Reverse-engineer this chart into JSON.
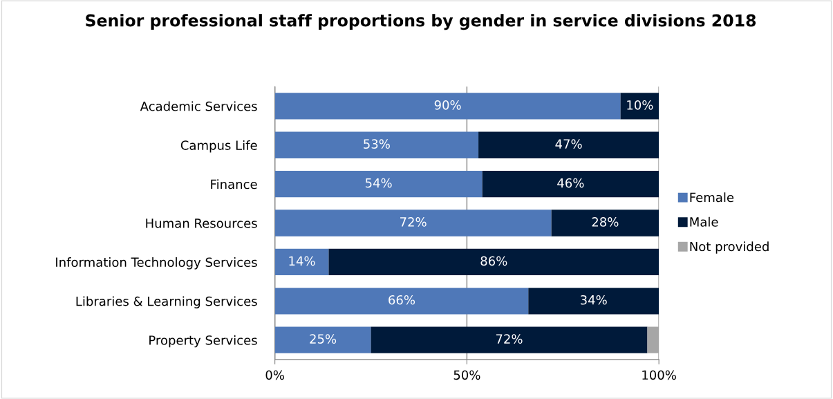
{
  "chart_data": {
    "type": "bar",
    "orientation": "horizontal",
    "stacked": true,
    "title": "Senior professional staff proportions by gender in service divisions 2018",
    "categories": [
      "Academic Services",
      "Campus Life",
      "Finance",
      "Human Resources",
      "Information Technology Services",
      "Libraries & Learning Services",
      "Property Services"
    ],
    "series": [
      {
        "name": "Female",
        "color": "#4f78b8",
        "values": [
          90,
          53,
          54,
          72,
          14,
          66,
          25
        ],
        "value_labels": [
          "90%",
          "53%",
          "54%",
          "72%",
          "14%",
          "66%",
          "25%"
        ]
      },
      {
        "name": "Male",
        "color": "#001a3a",
        "values": [
          10,
          47,
          46,
          28,
          86,
          34,
          72
        ],
        "value_labels": [
          "10%",
          "47%",
          "46%",
          "28%",
          "86%",
          "34%",
          "72%"
        ]
      },
      {
        "name": "Not provided",
        "color": "#a6a6a6",
        "values": [
          0,
          0,
          0,
          0,
          0,
          0,
          3
        ],
        "value_labels": [
          null,
          null,
          null,
          null,
          null,
          null,
          null
        ]
      }
    ],
    "xlim": [
      0,
      100
    ],
    "xticks": [
      {
        "value": 0,
        "label": "0%"
      },
      {
        "value": 50,
        "label": "50%"
      },
      {
        "value": 100,
        "label": "100%"
      }
    ],
    "grid": "x",
    "legend": "right"
  }
}
